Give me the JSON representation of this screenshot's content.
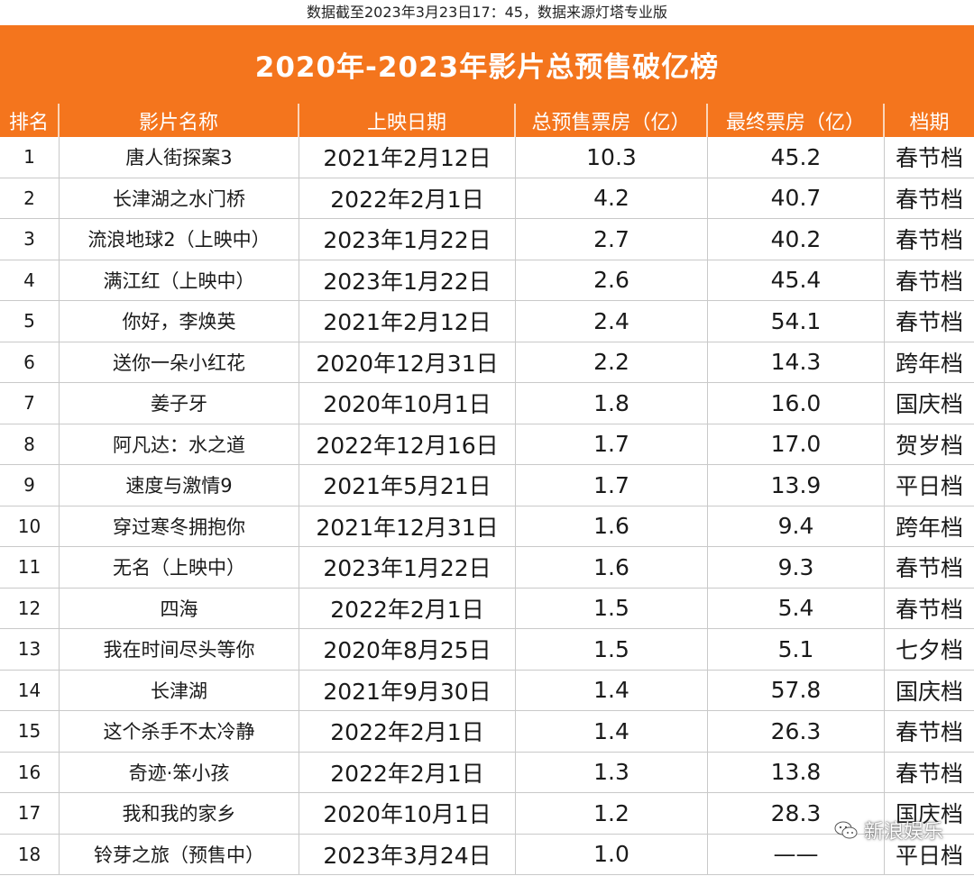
{
  "note": "数据截至2023年3月23日17：45，数据来源灯塔专业版",
  "title": "2020年-2023年影片总预售破亿榜",
  "headers": {
    "rank": "排名",
    "name": "影片名称",
    "date": "上映日期",
    "presale": "总预售票房（亿）",
    "final": "最终票房（亿）",
    "slot": "档期"
  },
  "rows": [
    {
      "rank": "1",
      "name": "唐人街探案3",
      "date": "2021年2月12日",
      "presale": "10.3",
      "final": "45.2",
      "slot": "春节档"
    },
    {
      "rank": "2",
      "name": "长津湖之水门桥",
      "date": "2022年2月1日",
      "presale": "4.2",
      "final": "40.7",
      "slot": "春节档"
    },
    {
      "rank": "3",
      "name": "流浪地球2（上映中）",
      "date": "2023年1月22日",
      "presale": "2.7",
      "final": "40.2",
      "slot": "春节档"
    },
    {
      "rank": "4",
      "name": "满江红（上映中）",
      "date": "2023年1月22日",
      "presale": "2.6",
      "final": "45.4",
      "slot": "春节档"
    },
    {
      "rank": "5",
      "name": "你好，李焕英",
      "date": "2021年2月12日",
      "presale": "2.4",
      "final": "54.1",
      "slot": "春节档"
    },
    {
      "rank": "6",
      "name": "送你一朵小红花",
      "date": "2020年12月31日",
      "presale": "2.2",
      "final": "14.3",
      "slot": "跨年档"
    },
    {
      "rank": "7",
      "name": "姜子牙",
      "date": "2020年10月1日",
      "presale": "1.8",
      "final": "16.0",
      "slot": "国庆档"
    },
    {
      "rank": "8",
      "name": "阿凡达：水之道",
      "date": "2022年12月16日",
      "presale": "1.7",
      "final": "17.0",
      "slot": "贺岁档"
    },
    {
      "rank": "9",
      "name": "速度与激情9",
      "date": "2021年5月21日",
      "presale": "1.7",
      "final": "13.9",
      "slot": "平日档"
    },
    {
      "rank": "10",
      "name": "穿过寒冬拥抱你",
      "date": "2021年12月31日",
      "presale": "1.6",
      "final": "9.4",
      "slot": "跨年档"
    },
    {
      "rank": "11",
      "name": "无名（上映中）",
      "date": "2023年1月22日",
      "presale": "1.6",
      "final": "9.3",
      "slot": "春节档"
    },
    {
      "rank": "12",
      "name": "四海",
      "date": "2022年2月1日",
      "presale": "1.5",
      "final": "5.4",
      "slot": "春节档"
    },
    {
      "rank": "13",
      "name": "我在时间尽头等你",
      "date": "2020年8月25日",
      "presale": "1.5",
      "final": "5.1",
      "slot": "七夕档"
    },
    {
      "rank": "14",
      "name": "长津湖",
      "date": "2021年9月30日",
      "presale": "1.4",
      "final": "57.8",
      "slot": "国庆档"
    },
    {
      "rank": "15",
      "name": "这个杀手不太冷静",
      "date": "2022年2月1日",
      "presale": "1.4",
      "final": "26.3",
      "slot": "春节档"
    },
    {
      "rank": "16",
      "name": "奇迹·笨小孩",
      "date": "2022年2月1日",
      "presale": "1.3",
      "final": "13.8",
      "slot": "春节档"
    },
    {
      "rank": "17",
      "name": "我和我的家乡",
      "date": "2020年10月1日",
      "presale": "1.2",
      "final": "28.3",
      "slot": "国庆档"
    },
    {
      "rank": "18",
      "name": "铃芽之旅（预售中）",
      "date": "2023年3月24日",
      "presale": "1.0",
      "final": "——",
      "slot": "平日档"
    }
  ],
  "watermark": {
    "text": "新浪娱乐",
    "icon": "wechat-icon"
  },
  "colors": {
    "header_bg": "#f4751d",
    "header_text": "#ffffff"
  }
}
